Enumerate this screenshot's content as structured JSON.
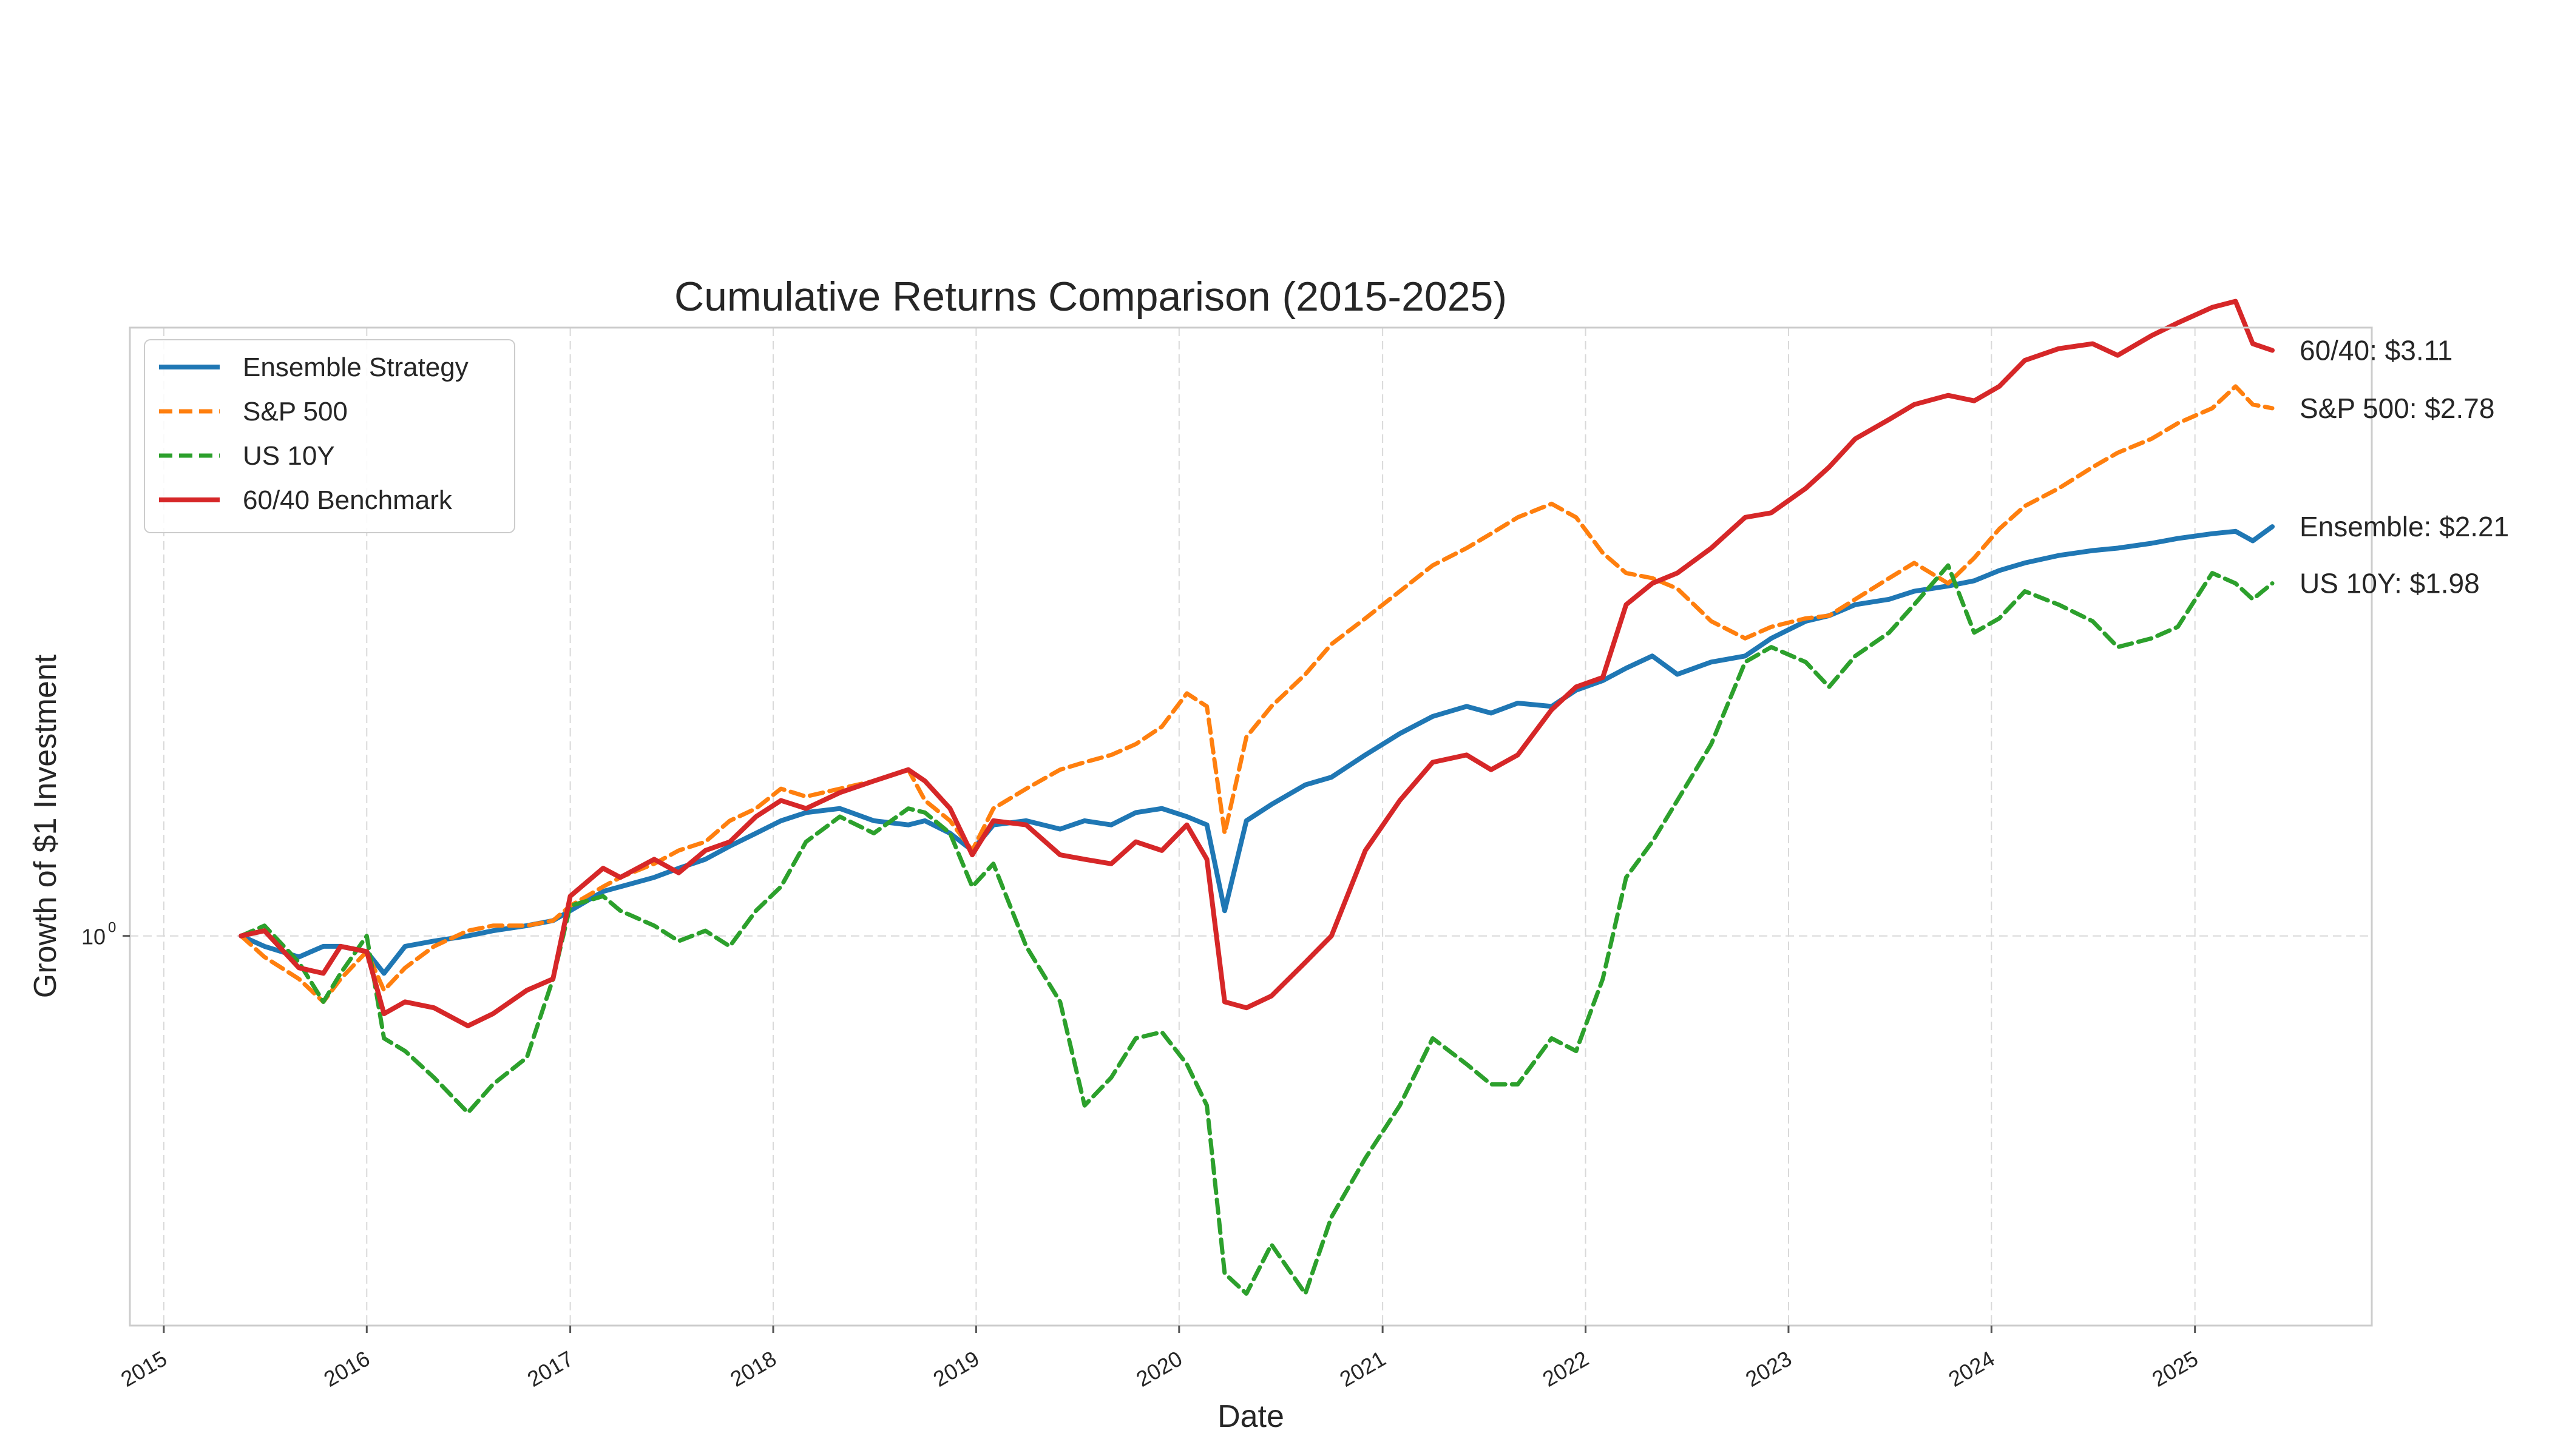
{
  "chart_data": {
    "type": "line",
    "title": "Cumulative Returns Comparison (2015-2025)",
    "xlabel": "Date",
    "ylabel": "Growth of $1 Investment",
    "yscale": "log",
    "ylim": [
      0.47,
      3.25
    ],
    "xlim": [
      "2014-11-01",
      "2025-11-15"
    ],
    "x_ticks": [
      "2015",
      "2016",
      "2017",
      "2018",
      "2019",
      "2020",
      "2021",
      "2022",
      "2023",
      "2024",
      "2025"
    ],
    "y_ticks": [
      {
        "value": 1,
        "label": "10",
        "exponent": "0"
      }
    ],
    "grid": true,
    "legend": "top-left",
    "x": [
      "2015-05-20",
      "2015-07-01",
      "2015-09-01",
      "2015-10-15",
      "2015-11-15",
      "2016-01-01",
      "2016-02-01",
      "2016-03-10",
      "2016-05-01",
      "2016-07-01",
      "2016-08-15",
      "2016-10-15",
      "2016-12-01",
      "2017-01-01",
      "2017-03-01",
      "2017-04-01",
      "2017-06-01",
      "2017-07-15",
      "2017-09-01",
      "2017-10-15",
      "2017-12-01",
      "2018-01-15",
      "2018-03-01",
      "2018-05-01",
      "2018-07-01",
      "2018-09-01",
      "2018-10-01",
      "2018-11-15",
      "2018-12-25",
      "2019-02-01",
      "2019-04-01",
      "2019-06-01",
      "2019-07-15",
      "2019-09-01",
      "2019-10-15",
      "2019-12-01",
      "2020-01-15",
      "2020-02-20",
      "2020-03-23",
      "2020-05-01",
      "2020-06-15",
      "2020-08-15",
      "2020-10-01",
      "2020-12-01",
      "2021-02-01",
      "2021-04-01",
      "2021-06-01",
      "2021-07-15",
      "2021-09-01",
      "2021-11-01",
      "2021-12-15",
      "2022-02-01",
      "2022-03-15",
      "2022-05-01",
      "2022-06-15",
      "2022-08-15",
      "2022-10-15",
      "2022-12-01",
      "2023-02-01",
      "2023-03-15",
      "2023-05-01",
      "2023-07-01",
      "2023-08-15",
      "2023-10-15",
      "2023-12-01",
      "2024-01-15",
      "2024-03-01",
      "2024-05-01",
      "2024-07-01",
      "2024-08-15",
      "2024-10-15",
      "2024-12-01",
      "2025-02-01",
      "2025-03-15",
      "2025-04-15",
      "2025-05-20"
    ],
    "series": [
      {
        "name": "Ensemble Strategy",
        "color": "#1f77b4",
        "dash": "solid",
        "values": [
          1.0,
          0.98,
          0.96,
          0.98,
          0.98,
          0.97,
          0.93,
          0.98,
          0.99,
          1.0,
          1.01,
          1.02,
          1.03,
          1.05,
          1.09,
          1.1,
          1.12,
          1.14,
          1.16,
          1.19,
          1.22,
          1.25,
          1.27,
          1.28,
          1.25,
          1.24,
          1.25,
          1.22,
          1.18,
          1.24,
          1.25,
          1.23,
          1.25,
          1.24,
          1.27,
          1.28,
          1.26,
          1.24,
          1.05,
          1.25,
          1.29,
          1.34,
          1.36,
          1.42,
          1.48,
          1.53,
          1.56,
          1.54,
          1.57,
          1.56,
          1.61,
          1.64,
          1.68,
          1.72,
          1.66,
          1.7,
          1.72,
          1.78,
          1.84,
          1.86,
          1.9,
          1.92,
          1.95,
          1.97,
          1.99,
          2.03,
          2.06,
          2.09,
          2.11,
          2.12,
          2.14,
          2.16,
          2.18,
          2.19,
          2.15,
          2.21
        ]
      },
      {
        "name": "S&P 500",
        "color": "#ff7f0e",
        "dash": "dashed",
        "values": [
          1.0,
          0.96,
          0.92,
          0.88,
          0.92,
          0.97,
          0.9,
          0.94,
          0.98,
          1.01,
          1.02,
          1.02,
          1.03,
          1.06,
          1.1,
          1.12,
          1.15,
          1.18,
          1.2,
          1.25,
          1.28,
          1.33,
          1.31,
          1.33,
          1.35,
          1.38,
          1.3,
          1.25,
          1.18,
          1.28,
          1.33,
          1.38,
          1.4,
          1.42,
          1.45,
          1.5,
          1.6,
          1.56,
          1.22,
          1.47,
          1.56,
          1.66,
          1.76,
          1.85,
          1.95,
          2.05,
          2.12,
          2.18,
          2.25,
          2.31,
          2.25,
          2.1,
          2.02,
          2.0,
          1.96,
          1.84,
          1.78,
          1.82,
          1.85,
          1.86,
          1.92,
          2.0,
          2.06,
          1.98,
          2.08,
          2.2,
          2.3,
          2.38,
          2.48,
          2.55,
          2.62,
          2.7,
          2.78,
          2.9,
          2.8,
          2.78
        ]
      },
      {
        "name": "US 10Y",
        "color": "#2ca02c",
        "dash": "dashed",
        "values": [
          1.0,
          1.02,
          0.95,
          0.88,
          0.93,
          1.0,
          0.82,
          0.8,
          0.76,
          0.71,
          0.75,
          0.79,
          0.92,
          1.06,
          1.08,
          1.05,
          1.02,
          0.99,
          1.01,
          0.98,
          1.05,
          1.1,
          1.2,
          1.26,
          1.22,
          1.28,
          1.27,
          1.22,
          1.1,
          1.15,
          0.98,
          0.88,
          0.72,
          0.76,
          0.82,
          0.83,
          0.78,
          0.72,
          0.52,
          0.5,
          0.55,
          0.5,
          0.58,
          0.65,
          0.72,
          0.82,
          0.78,
          0.75,
          0.75,
          0.82,
          0.8,
          0.92,
          1.12,
          1.2,
          1.3,
          1.45,
          1.7,
          1.75,
          1.7,
          1.62,
          1.72,
          1.8,
          1.9,
          2.05,
          1.8,
          1.85,
          1.95,
          1.9,
          1.84,
          1.75,
          1.78,
          1.82,
          2.02,
          1.98,
          1.92,
          1.98
        ]
      },
      {
        "name": "60/40 Benchmark",
        "color": "#d62728",
        "dash": "solid",
        "values": [
          1.0,
          1.01,
          0.94,
          0.93,
          0.98,
          0.97,
          0.86,
          0.88,
          0.87,
          0.84,
          0.86,
          0.9,
          0.92,
          1.08,
          1.14,
          1.12,
          1.16,
          1.13,
          1.18,
          1.2,
          1.26,
          1.3,
          1.28,
          1.32,
          1.35,
          1.38,
          1.35,
          1.28,
          1.17,
          1.25,
          1.24,
          1.17,
          1.16,
          1.15,
          1.2,
          1.18,
          1.24,
          1.16,
          0.88,
          0.87,
          0.89,
          0.95,
          1.0,
          1.18,
          1.3,
          1.4,
          1.42,
          1.38,
          1.42,
          1.55,
          1.62,
          1.65,
          1.9,
          1.98,
          2.02,
          2.12,
          2.25,
          2.27,
          2.38,
          2.48,
          2.62,
          2.72,
          2.8,
          2.85,
          2.82,
          2.9,
          3.05,
          3.12,
          3.15,
          3.08,
          3.2,
          3.28,
          3.38,
          3.42,
          3.15,
          3.11
        ]
      }
    ],
    "end_labels": [
      {
        "series": "60/40 Benchmark",
        "text": "60/40: $3.11"
      },
      {
        "series": "S&P 500",
        "text": "S&P 500: $2.78"
      },
      {
        "series": "US 10Y",
        "text": "US 10Y: $1.98"
      },
      {
        "series": "Ensemble Strategy",
        "text": "Ensemble: $2.21"
      }
    ]
  }
}
